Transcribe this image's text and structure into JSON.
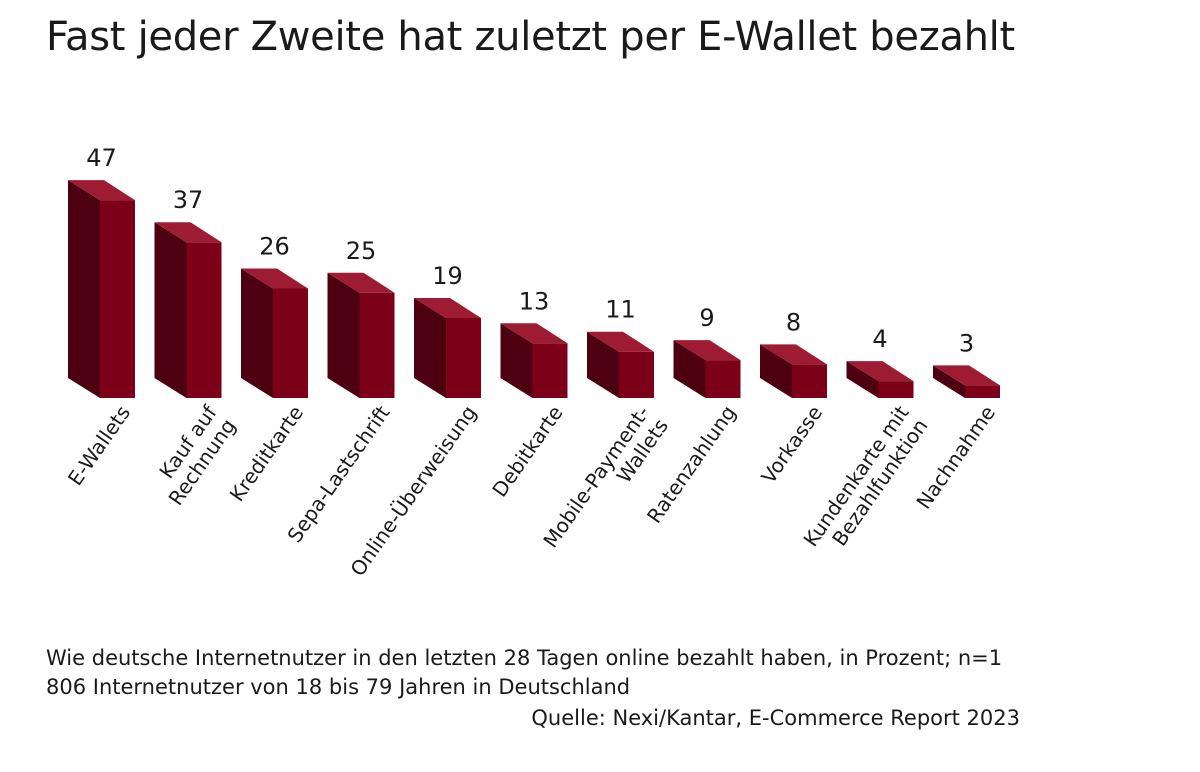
{
  "title": "Fast jeder Zweite hat zuletzt per E-Wallet bezahlt",
  "note": "Wie deutsche Internetnutzer in den letzten 28 Tagen online bezahlt haben, in Prozent; n=1 806  Internetnutzer von 18 bis 79 Jahren in Deutschland",
  "source": "Quelle: Nexi/Kantar, E-Commerce Report 2023",
  "colors": {
    "bar_front": "#7d0019",
    "bar_side": "#4d000f",
    "bar_top": "#9e1c33"
  },
  "chart_data": {
    "type": "bar",
    "categories": [
      "E-Wallets",
      "Kauf auf Rechnung",
      "Kreditkarte",
      "Sepa-Lastschrift",
      "Online-Überweisung",
      "Debitkarte",
      "Mobile-Payment-Wallets",
      "Ratenzahlung",
      "Vorkasse",
      "Kundenkarte mit Bezahlfunktion",
      "Nachnahme"
    ],
    "category_lines": [
      [
        "E-Wallets"
      ],
      [
        "Kauf auf",
        "Rechnung"
      ],
      [
        "Kreditkarte"
      ],
      [
        "Sepa-Lastschrift"
      ],
      [
        "Online-Überweisung"
      ],
      [
        "Debitkarte"
      ],
      [
        "Mobile-Payment-",
        "Wallets"
      ],
      [
        "Ratenzahlung"
      ],
      [
        "Vorkasse"
      ],
      [
        "Kundenkarte mit",
        "Bezahlfunktion"
      ],
      [
        "Nachnahme"
      ]
    ],
    "values": [
      47,
      37,
      26,
      25,
      19,
      13,
      11,
      9,
      8,
      4,
      3
    ],
    "ylim": [
      0,
      50
    ],
    "grid": false,
    "style": "3d-bar"
  }
}
